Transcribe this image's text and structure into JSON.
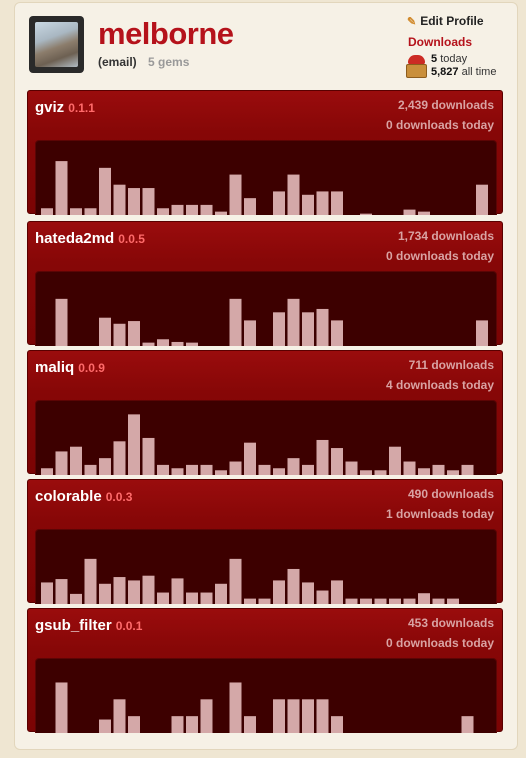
{
  "profile": {
    "username": "melborne",
    "email_link": "(email)",
    "gem_count": "5 gems",
    "edit_profile": "Edit Profile",
    "downloads_title": "Downloads",
    "today_value": "5",
    "today_label": "today",
    "alltime_value": "5,827",
    "alltime_label": "all time"
  },
  "colors": {
    "brand_red": "#b5121b",
    "panel_red": "#870707",
    "chart_bg": "#3d0000",
    "bar": "#d4a8a8"
  },
  "gems": [
    {
      "name": "gviz",
      "version": "0.1.1",
      "total": "2,439 downloads",
      "today": "0 downloads today",
      "bars": [
        1,
        8,
        1,
        1,
        7,
        4.5,
        4,
        4,
        1,
        1.5,
        1.5,
        1.5,
        0.5,
        6,
        2.5,
        0,
        3.5,
        6,
        3,
        3.5,
        3.5,
        0,
        0.2,
        0,
        0,
        0.8,
        0.5,
        0,
        0,
        0,
        4.5
      ]
    },
    {
      "name": "hateda2md",
      "version": "0.0.5",
      "total": "1,734 downloads",
      "today": "0 downloads today",
      "bars": [
        0,
        7,
        0,
        0,
        4.2,
        3.3,
        3.7,
        0.5,
        1,
        0.6,
        0.5,
        0,
        0,
        7,
        3.8,
        0,
        5,
        7,
        5,
        5.5,
        3.8,
        0,
        0,
        0,
        0,
        0,
        0,
        0,
        0,
        0,
        3.8
      ]
    },
    {
      "name": "maliq",
      "version": "0.0.9",
      "total": "711 downloads",
      "today": "4 downloads today",
      "bars": [
        1,
        3.5,
        4.2,
        1.5,
        2.5,
        5,
        9,
        5.5,
        1.5,
        1,
        1.5,
        1.5,
        0.7,
        2,
        4.8,
        1.5,
        1,
        2.5,
        1.5,
        5.2,
        4,
        2,
        0.7,
        0.7,
        4.2,
        2,
        1,
        1.5,
        0.7,
        1.5
      ]
    },
    {
      "name": "colorable",
      "version": "0.0.3",
      "total": "490 downloads",
      "today": "1 downloads today",
      "bars": [
        3.2,
        3.7,
        1.5,
        6.7,
        3,
        4,
        3.5,
        4.2,
        1.7,
        3.8,
        1.7,
        1.7,
        3,
        6.7,
        0.8,
        0.8,
        3.5,
        5.2,
        3.2,
        2,
        3.5,
        0.8,
        0.8,
        0.8,
        0.8,
        0.8,
        1.6,
        0.8,
        0.8,
        0
      ]
    },
    {
      "name": "gsub_filter",
      "version": "0.0.1",
      "total": "453 downloads",
      "today": "0 downloads today",
      "bars": [
        0,
        7.5,
        0,
        0,
        2,
        5,
        2.5,
        0,
        0,
        2.5,
        2.5,
        5,
        0,
        7.5,
        2.5,
        0,
        5,
        5,
        5,
        5,
        2.5,
        0,
        0,
        0,
        0,
        0,
        0,
        0,
        0,
        2.5
      ]
    }
  ]
}
